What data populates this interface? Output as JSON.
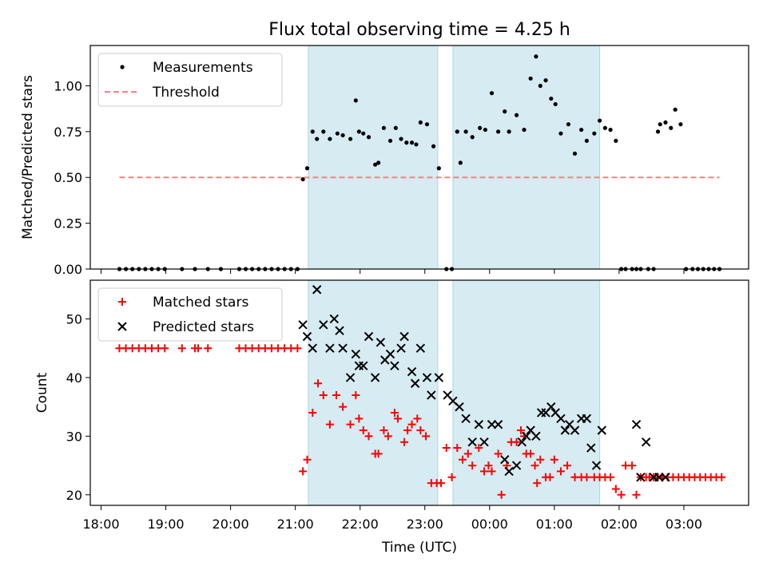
{
  "title": "Flux total observing time = 4.25 h",
  "colors": {
    "measurement": "#000000",
    "threshold": "#ff7f7f",
    "matched": "#ff0000",
    "predicted": "#000000",
    "observing_window": "#add8e6"
  },
  "chart_data": [
    {
      "type": "scatter",
      "ylabel": "Matched/Predicted stars",
      "xlabel": "",
      "xlim": [
        "17:50",
        "04:00"
      ],
      "ylim": [
        0,
        1.22
      ],
      "yticks": [
        "0.00",
        "0.25",
        "0.50",
        "0.75",
        "1.00"
      ],
      "legend": {
        "position": "top-left",
        "entries": [
          "Measurements",
          "Threshold"
        ]
      },
      "threshold": {
        "y": 0.5,
        "x_start": "18:17",
        "x_end": "03:33"
      },
      "shaded_regions": [
        [
          "21:12",
          "23:12"
        ],
        [
          "23:26",
          "01:42"
        ]
      ],
      "series": [
        {
          "name": "Measurements",
          "x": [
            "18:17",
            "18:23",
            "18:29",
            "18:35",
            "18:41",
            "18:47",
            "18:53",
            "18:59",
            "19:15",
            "19:27",
            "19:39",
            "19:51",
            "20:08",
            "20:14",
            "20:20",
            "20:26",
            "20:32",
            "20:38",
            "20:44",
            "20:50",
            "20:56",
            "21:02",
            "21:07",
            "21:11",
            "21:16",
            "21:20",
            "21:26",
            "21:32",
            "21:39",
            "21:44",
            "21:51",
            "21:56",
            "21:59",
            "22:03",
            "22:08",
            "22:14",
            "22:17",
            "22:22",
            "22:28",
            "22:33",
            "22:38",
            "22:43",
            "22:48",
            "22:52",
            "22:56",
            "23:02",
            "23:08",
            "23:13",
            "23:20",
            "23:25",
            "23:30",
            "23:33",
            "23:38",
            "23:44",
            "23:51",
            "23:56",
            "00:02",
            "00:08",
            "00:14",
            "00:18",
            "00:25",
            "00:32",
            "00:38",
            "00:43",
            "00:47",
            "00:52",
            "00:57",
            "01:01",
            "01:06",
            "01:13",
            "01:19",
            "01:25",
            "01:30",
            "01:37",
            "01:42",
            "01:47",
            "01:52",
            "01:57",
            "02:02",
            "02:06",
            "02:12",
            "02:16",
            "02:20",
            "02:27",
            "02:32",
            "02:36",
            "02:38",
            "02:43",
            "02:48",
            "02:52",
            "02:57",
            "03:02",
            "03:08",
            "03:13",
            "03:18",
            "03:23",
            "03:28",
            "03:33"
          ],
          "y": [
            0,
            0,
            0,
            0,
            0,
            0,
            0,
            0,
            0,
            0,
            0,
            0,
            0,
            0,
            0,
            0,
            0,
            0,
            0,
            0,
            0,
            0,
            0.49,
            0.55,
            0.75,
            0.71,
            0.75,
            0.71,
            0.74,
            0.73,
            0.71,
            0.92,
            0.75,
            0.74,
            0.72,
            0.57,
            0.58,
            0.77,
            0.7,
            0.77,
            0.71,
            0.69,
            0.69,
            0.68,
            0.8,
            0.79,
            0.67,
            0.55,
            0,
            0,
            0.75,
            0.58,
            0.75,
            0.72,
            0.77,
            0.76,
            0.96,
            0.75,
            0.86,
            0.75,
            0.84,
            0.76,
            1.04,
            1.16,
            1.0,
            1.03,
            0.93,
            0.9,
            0.74,
            0.79,
            0.63,
            0.76,
            0.7,
            0.74,
            0.81,
            0.77,
            0.76,
            0.7,
            0,
            0,
            0,
            0,
            0,
            0,
            0,
            0.75,
            0.79,
            0.8,
            0.77,
            0.87,
            0.79,
            0,
            0,
            0,
            0,
            0,
            0,
            0
          ]
        }
      ]
    },
    {
      "type": "scatter",
      "ylabel": "Count",
      "xlabel": "Time (UTC)",
      "xlim": [
        "17:50",
        "04:00"
      ],
      "ylim": [
        18.2,
        56.6
      ],
      "yticks": [
        "20",
        "30",
        "40",
        "50"
      ],
      "xticks": [
        "18:00",
        "19:00",
        "20:00",
        "21:00",
        "22:00",
        "23:00",
        "00:00",
        "01:00",
        "02:00",
        "03:00"
      ],
      "legend": {
        "position": "top-left",
        "entries": [
          "Matched stars",
          "Predicted stars"
        ]
      },
      "shaded_regions": [
        [
          "21:12",
          "23:12"
        ],
        [
          "23:26",
          "01:42"
        ]
      ],
      "series": [
        {
          "name": "Matched stars",
          "x": [
            "18:17",
            "18:23",
            "18:29",
            "18:35",
            "18:41",
            "18:47",
            "18:53",
            "18:59",
            "19:15",
            "19:27",
            "19:30",
            "19:39",
            "20:08",
            "20:14",
            "20:20",
            "20:26",
            "20:32",
            "20:38",
            "20:44",
            "20:50",
            "20:56",
            "21:02",
            "21:07",
            "21:11",
            "21:16",
            "21:21",
            "21:26",
            "21:32",
            "21:38",
            "21:44",
            "21:51",
            "21:56",
            "21:59",
            "22:03",
            "22:08",
            "22:14",
            "22:17",
            "22:22",
            "22:26",
            "22:32",
            "22:35",
            "22:41",
            "22:44",
            "22:48",
            "22:53",
            "22:56",
            "23:01",
            "23:06",
            "23:11",
            "23:15",
            "23:20",
            "23:25",
            "23:30",
            "23:35",
            "23:40",
            "23:44",
            "23:50",
            "23:55",
            "23:59",
            "00:02",
            "00:08",
            "00:11",
            "00:16",
            "00:20",
            "00:25",
            "00:29",
            "00:32",
            "00:34",
            "00:38",
            "00:42",
            "00:44",
            "00:47",
            "00:52",
            "00:56",
            "01:00",
            "01:06",
            "01:12",
            "01:19",
            "01:25",
            "01:30",
            "01:37",
            "01:42",
            "01:47",
            "01:52",
            "01:57",
            "02:02",
            "02:06",
            "02:12",
            "02:16",
            "02:20",
            "02:25",
            "02:28",
            "02:32",
            "02:36",
            "02:40",
            "02:45",
            "02:50",
            "02:55",
            "03:00",
            "03:05",
            "03:10",
            "03:15",
            "03:20",
            "03:25",
            "03:30",
            "03:35"
          ],
          "y": [
            45,
            45,
            45,
            45,
            45,
            45,
            45,
            45,
            45,
            45,
            45,
            45,
            45,
            45,
            45,
            45,
            45,
            45,
            45,
            45,
            45,
            45,
            24,
            26,
            34,
            39,
            37,
            32,
            37,
            35,
            32,
            37,
            33,
            31,
            30,
            27,
            27,
            31,
            30,
            34,
            33,
            29,
            31,
            32,
            33,
            31,
            30,
            22,
            22,
            22,
            28,
            23,
            28,
            26,
            27,
            25,
            28,
            24,
            25,
            24,
            27,
            20,
            25,
            29,
            29,
            31,
            30,
            27,
            27,
            25,
            22,
            26,
            23,
            23,
            26,
            24,
            25,
            23,
            23,
            23,
            23,
            23,
            23,
            23,
            21,
            20,
            25,
            25,
            20,
            23,
            23,
            23,
            23,
            23,
            23,
            23,
            23,
            23,
            23,
            23,
            23,
            23,
            23,
            23,
            23,
            23
          ]
        },
        {
          "name": "Predicted stars",
          "x": [
            "21:07",
            "21:11",
            "21:16",
            "21:20",
            "21:26",
            "21:32",
            "21:36",
            "21:41",
            "21:44",
            "21:51",
            "21:56",
            "21:59",
            "22:03",
            "22:08",
            "22:14",
            "22:19",
            "22:23",
            "22:28",
            "22:32",
            "22:38",
            "22:41",
            "22:48",
            "22:51",
            "22:56",
            "23:02",
            "23:06",
            "23:13",
            "23:21",
            "23:26",
            "23:32",
            "23:38",
            "23:44",
            "23:50",
            "23:55",
            "00:02",
            "00:08",
            "00:14",
            "00:18",
            "00:25",
            "00:30",
            "00:34",
            "00:38",
            "00:43",
            "00:48",
            "00:52",
            "00:57",
            "01:01",
            "01:06",
            "01:10",
            "01:14",
            "01:19",
            "01:25",
            "01:30",
            "01:34",
            "01:39",
            "01:44",
            "02:16",
            "02:20",
            "02:25",
            "02:32",
            "02:37",
            "02:43"
          ],
          "y": [
            49,
            47,
            45,
            55,
            49,
            45,
            50,
            48,
            45,
            40,
            44,
            42,
            42,
            47,
            40,
            46,
            43,
            44,
            42,
            45,
            47,
            41,
            39,
            45,
            40,
            37,
            40,
            37,
            36,
            35,
            33,
            29,
            32,
            29,
            32,
            32,
            26,
            24,
            25,
            29,
            30,
            31,
            30,
            34,
            34,
            35,
            34,
            33,
            31,
            32,
            31,
            33,
            33,
            28,
            25,
            31,
            32,
            23,
            29,
            23,
            23,
            23
          ]
        }
      ]
    }
  ]
}
